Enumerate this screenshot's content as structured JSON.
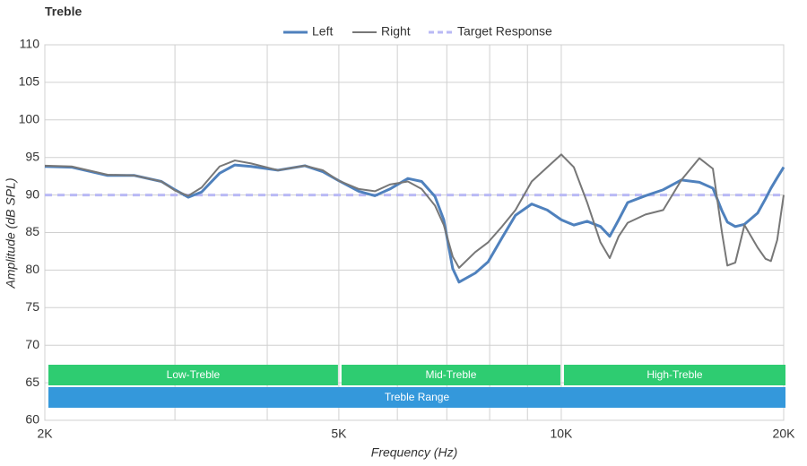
{
  "chart_data": {
    "type": "line",
    "title": "Treble",
    "xlabel": "Frequency (Hz)",
    "ylabel": "Amplitude (dB SPL)",
    "xscale": "log",
    "x": [
      2000,
      2174,
      2432,
      2644,
      2876,
      3000,
      3127,
      3260,
      3448,
      3616,
      3804,
      4136,
      4498,
      4756,
      5000,
      5320,
      5594,
      5862,
      6200,
      6472,
      6746,
      6934,
      7130,
      7272,
      7648,
      7962,
      8314,
      8670,
      9120,
      9572,
      10000,
      10400,
      10840,
      11300,
      11630,
      11960,
      12300,
      13000,
      13740,
      14540,
      15380,
      16040,
      16500,
      16780,
      17200,
      17700,
      18440,
      18900,
      19220,
      19600,
      20000
    ],
    "series": [
      {
        "name": "Left",
        "color": "#4f81bd",
        "values": [
          93.8,
          93.7,
          92.6,
          92.6,
          91.8,
          90.7,
          89.7,
          90.4,
          92.9,
          94.0,
          93.8,
          93.3,
          93.9,
          93.1,
          91.9,
          90.5,
          89.9,
          90.8,
          92.2,
          91.8,
          89.8,
          86.7,
          80.2,
          78.4,
          79.6,
          81.1,
          84.3,
          87.3,
          88.8,
          88.0,
          86.7,
          86.0,
          86.5,
          85.8,
          84.5,
          86.7,
          89.0,
          89.9,
          90.7,
          92.0,
          91.7,
          90.9,
          87.9,
          86.4,
          85.8,
          86.1,
          87.6,
          89.5,
          90.9,
          92.3,
          93.7
        ]
      },
      {
        "name": "Right",
        "color": "#777777",
        "values": [
          93.9,
          93.8,
          92.7,
          92.6,
          91.8,
          90.6,
          89.9,
          91.0,
          93.8,
          94.6,
          94.2,
          93.3,
          93.9,
          93.3,
          91.9,
          90.8,
          90.5,
          91.4,
          91.8,
          90.8,
          88.6,
          86.0,
          81.8,
          80.3,
          82.4,
          83.7,
          85.8,
          88.0,
          91.8,
          93.7,
          95.4,
          93.7,
          89.0,
          83.7,
          81.6,
          84.5,
          86.3,
          87.4,
          88.0,
          92.0,
          94.9,
          93.5,
          85.0,
          80.6,
          81.0,
          86.0,
          83.0,
          81.5,
          81.2,
          84.0,
          90.0
        ]
      }
    ],
    "target": {
      "name": "Target Response",
      "color": "#b9b9f5",
      "value": 90
    },
    "bands": [
      {
        "label": "Low-Treble",
        "from": 2000,
        "to": 5000,
        "color": "#2ecc71"
      },
      {
        "label": "Mid-Treble",
        "from": 5000,
        "to": 10000,
        "color": "#2ecc71"
      },
      {
        "label": "High-Treble",
        "from": 10000,
        "to": 20000,
        "color": "#2ecc71"
      },
      {
        "label": "Treble Range",
        "from": 2000,
        "to": 20000,
        "color": "#3498db"
      }
    ],
    "xlim": [
      2000,
      20000
    ],
    "xticks": [
      {
        "value": 2000,
        "label": "2K"
      },
      {
        "value": 5000,
        "label": "5K"
      },
      {
        "value": 10000,
        "label": "10K"
      },
      {
        "value": 20000,
        "label": "20K"
      }
    ],
    "xgrid": [
      3000,
      4000,
      6000,
      7000,
      8000,
      9000
    ],
    "ylim": [
      60,
      110
    ],
    "yticks": [
      60,
      65,
      70,
      75,
      80,
      85,
      90,
      95,
      100,
      105,
      110
    ],
    "grid": true,
    "legend": "top"
  }
}
